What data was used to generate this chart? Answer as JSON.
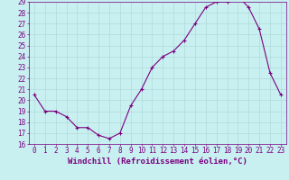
{
  "x": [
    0,
    1,
    2,
    3,
    4,
    5,
    6,
    7,
    8,
    9,
    10,
    11,
    12,
    13,
    14,
    15,
    16,
    17,
    18,
    19,
    20,
    21,
    22,
    23
  ],
  "y": [
    20.5,
    19.0,
    19.0,
    18.5,
    17.5,
    17.5,
    16.8,
    16.5,
    17.0,
    19.5,
    21.0,
    23.0,
    24.0,
    24.5,
    25.5,
    27.0,
    28.5,
    29.0,
    29.0,
    29.5,
    28.5,
    26.5,
    22.5,
    20.5
  ],
  "line_color": "#7b0080",
  "marker": "+",
  "bg_color": "#c8f0f0",
  "grid_color": "#b0dada",
  "xlabel": "Windchill (Refroidissement éolien,°C)",
  "ylim": [
    16,
    29
  ],
  "xlim": [
    -0.5,
    23.5
  ],
  "yticks": [
    16,
    17,
    18,
    19,
    20,
    21,
    22,
    23,
    24,
    25,
    26,
    27,
    28,
    29
  ],
  "xticks": [
    0,
    1,
    2,
    3,
    4,
    5,
    6,
    7,
    8,
    9,
    10,
    11,
    12,
    13,
    14,
    15,
    16,
    17,
    18,
    19,
    20,
    21,
    22,
    23
  ],
  "tick_color": "#7b0080",
  "tick_fontsize": 5.5,
  "xlabel_fontsize": 6.5,
  "linewidth": 0.8,
  "markersize": 3.5
}
